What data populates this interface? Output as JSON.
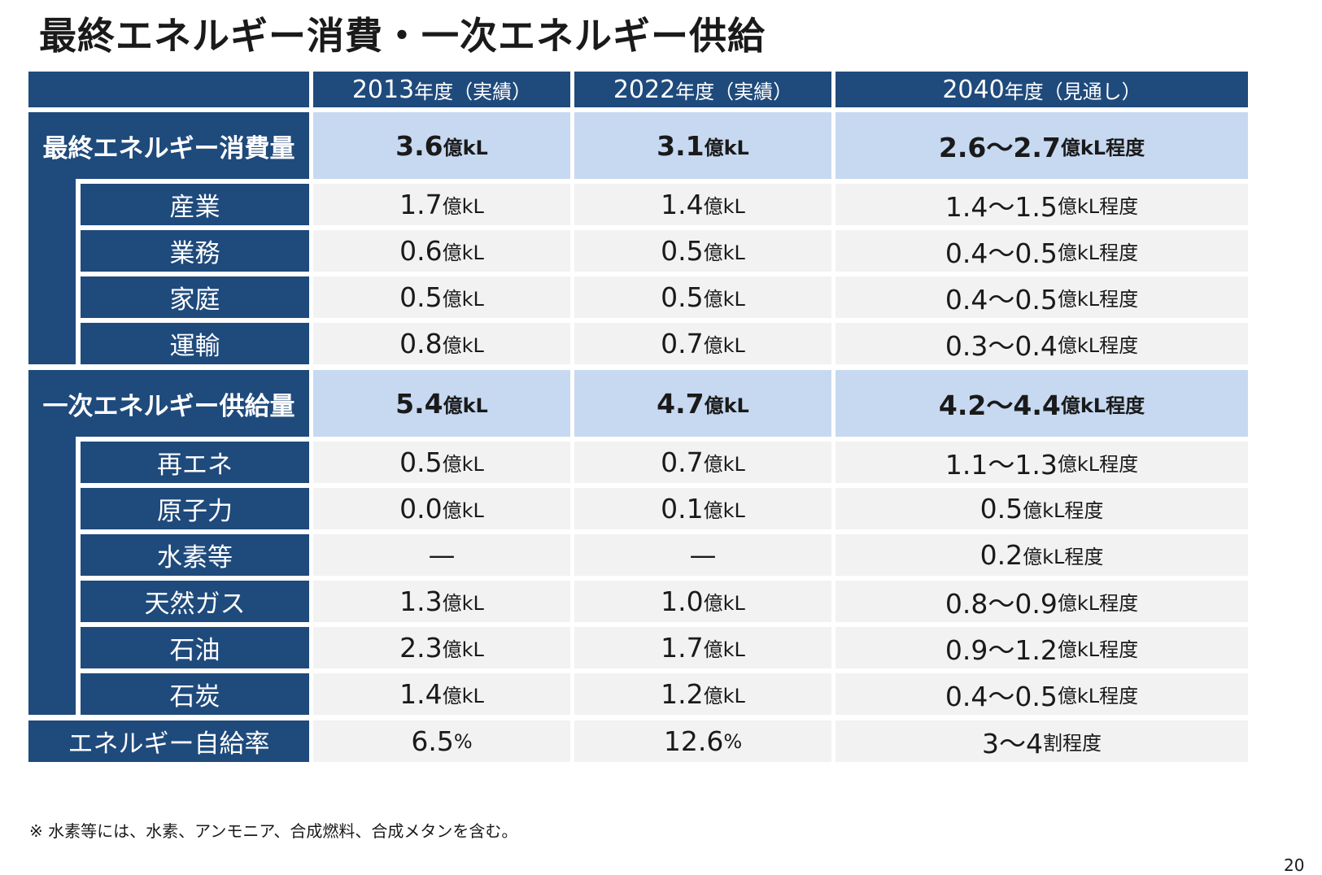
{
  "title": "最終エネルギー消費・一次エネルギー供給",
  "header": [
    {
      "year": "2013",
      "suffix": "年度（実績）"
    },
    {
      "year": "2022",
      "suffix": "年度（実績）"
    },
    {
      "year": "2040",
      "suffix": "年度（見通し）"
    }
  ],
  "final_consumption": {
    "label": "最終エネルギー消費量",
    "total": [
      {
        "num": "3.6",
        "unit": "億kL"
      },
      {
        "num": "3.1",
        "unit": "億kL"
      },
      {
        "num": "2.6〜2.7",
        "unit": "億kL程度"
      }
    ],
    "rows": [
      {
        "label": "産業",
        "cells": [
          {
            "num": "1.7",
            "unit": "億kL"
          },
          {
            "num": "1.4",
            "unit": "億kL"
          },
          {
            "num": "1.4〜1.5",
            "unit": "億kL程度"
          }
        ]
      },
      {
        "label": "業務",
        "cells": [
          {
            "num": "0.6",
            "unit": "億kL"
          },
          {
            "num": "0.5",
            "unit": "億kL"
          },
          {
            "num": "0.4〜0.5",
            "unit": "億kL程度"
          }
        ]
      },
      {
        "label": "家庭",
        "cells": [
          {
            "num": "0.5",
            "unit": "億kL"
          },
          {
            "num": "0.5",
            "unit": "億kL"
          },
          {
            "num": "0.4〜0.5",
            "unit": "億kL程度"
          }
        ]
      },
      {
        "label": "運輸",
        "cells": [
          {
            "num": "0.8",
            "unit": "億kL"
          },
          {
            "num": "0.7",
            "unit": "億kL"
          },
          {
            "num": "0.3〜0.4",
            "unit": "億kL程度"
          }
        ]
      }
    ]
  },
  "primary_supply": {
    "label": "一次エネルギー供給量",
    "total": [
      {
        "num": "5.4",
        "unit": "億kL"
      },
      {
        "num": "4.7",
        "unit": "億kL"
      },
      {
        "num": "4.2〜4.4",
        "unit": "億kL程度"
      }
    ],
    "rows": [
      {
        "label": "再エネ",
        "cells": [
          {
            "num": "0.5",
            "unit": "億kL"
          },
          {
            "num": "0.7",
            "unit": "億kL"
          },
          {
            "num": "1.1〜1.3",
            "unit": "億kL程度"
          }
        ]
      },
      {
        "label": "原子力",
        "cells": [
          {
            "num": "0.0",
            "unit": "億kL"
          },
          {
            "num": "0.1",
            "unit": "億kL"
          },
          {
            "num": "0.5",
            "unit": "億kL程度"
          }
        ]
      },
      {
        "label": "水素等",
        "cells": [
          {
            "num": "—",
            "unit": ""
          },
          {
            "num": "—",
            "unit": ""
          },
          {
            "num": "0.2",
            "unit": "億kL程度"
          }
        ]
      },
      {
        "label": "天然ガス",
        "cells": [
          {
            "num": "1.3",
            "unit": "億kL"
          },
          {
            "num": "1.0",
            "unit": "億kL"
          },
          {
            "num": "0.8〜0.9",
            "unit": "億kL程度"
          }
        ]
      },
      {
        "label": "石油",
        "cells": [
          {
            "num": "2.3",
            "unit": "億kL"
          },
          {
            "num": "1.7",
            "unit": "億kL"
          },
          {
            "num": "0.9〜1.2",
            "unit": "億kL程度"
          }
        ]
      },
      {
        "label": "石炭",
        "cells": [
          {
            "num": "1.4",
            "unit": "億kL"
          },
          {
            "num": "1.2",
            "unit": "億kL"
          },
          {
            "num": "0.4〜0.5",
            "unit": "億kL程度"
          }
        ]
      }
    ]
  },
  "self_sufficiency": {
    "label": "エネルギー自給率",
    "cells": [
      {
        "num": "6.5",
        "unit": "%"
      },
      {
        "num": "12.6",
        "unit": "%"
      },
      {
        "num": "3〜4",
        "unit": "割程度"
      }
    ]
  },
  "footnote": "※ 水素等には、水素、アンモニア、合成燃料、合成メタンを含む。",
  "page_number": "20",
  "colors": {
    "navy": "#1f4a7c",
    "highlight": "#c7d9f1",
    "gray": "#f2f2f2"
  }
}
